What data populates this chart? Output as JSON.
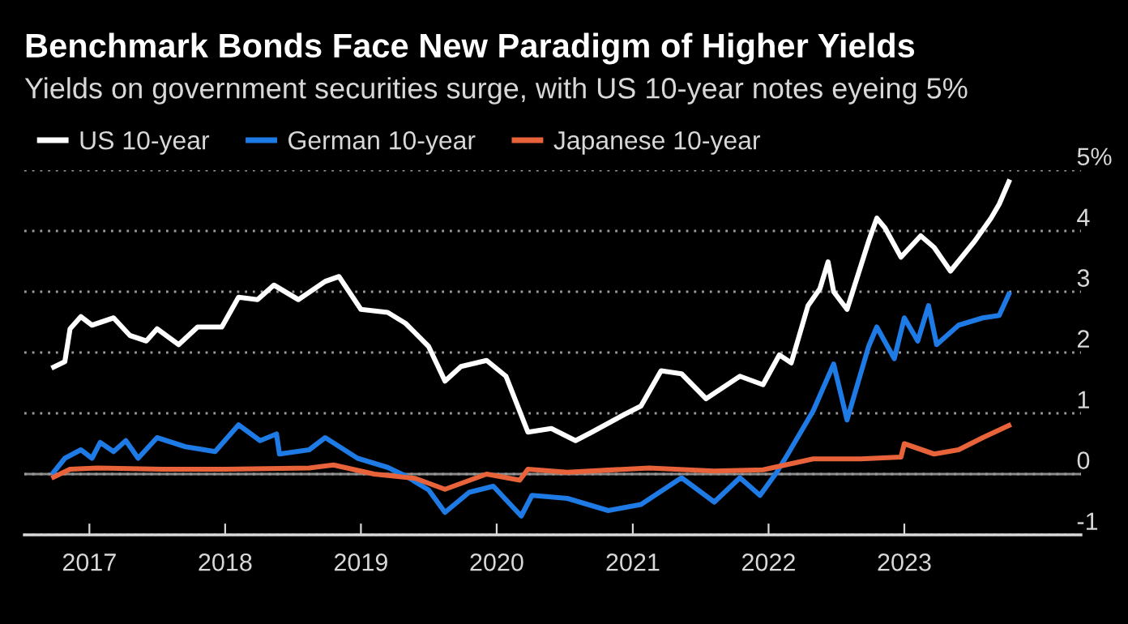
{
  "chart_data": {
    "type": "line",
    "title": "Benchmark Bonds Face New Paradigm of Higher Yields",
    "subtitle": "Yields on government securities surge, with US 10-year notes eyeing 5%",
    "series": [
      {
        "name": "US 10-year",
        "color": "#ffffff",
        "x": [
          "2016-09-27",
          "2016-10-27",
          "2016-11-10",
          "2016-12-09",
          "2017-01-08",
          "2017-03-07",
          "2017-04-20",
          "2017-06-03",
          "2017-07-02",
          "2017-08-29",
          "2017-10-19",
          "2017-12-23",
          "2018-02-06",
          "2018-03-29",
          "2018-05-12",
          "2018-07-17",
          "2018-09-27",
          "2018-11-03",
          "2019-01-01",
          "2019-03-14",
          "2019-05-01",
          "2019-07-02",
          "2019-08-15",
          "2019-09-27",
          "2019-12-05",
          "2020-01-26",
          "2020-03-25",
          "2020-05-27",
          "2020-07-31",
          "2020-09-13",
          "2020-12-09",
          "2021-01-23",
          "2021-03-18",
          "2021-05-12",
          "2021-07-17",
          "2021-10-16",
          "2021-12-17",
          "2022-01-30",
          "2022-03-03",
          "2022-04-17",
          "2022-05-19",
          "2022-06-10",
          "2022-06-25",
          "2022-07-31",
          "2022-09-27",
          "2022-10-19",
          "2022-11-10",
          "2022-12-23",
          "2023-02-14",
          "2023-03-22",
          "2023-05-05",
          "2023-07-09",
          "2023-08-22",
          "2023-09-13",
          "2023-10-09"
        ],
        "values": [
          1.76,
          1.85,
          2.39,
          2.59,
          2.45,
          2.57,
          2.28,
          2.19,
          2.39,
          2.13,
          2.42,
          2.42,
          2.91,
          2.87,
          3.11,
          2.87,
          3.17,
          3.25,
          2.71,
          2.66,
          2.48,
          2.1,
          1.53,
          1.77,
          1.87,
          1.61,
          0.69,
          0.75,
          0.55,
          0.69,
          0.98,
          1.12,
          1.7,
          1.65,
          1.24,
          1.61,
          1.47,
          1.96,
          1.83,
          2.77,
          3.05,
          3.49,
          3.0,
          2.71,
          3.83,
          4.21,
          4.05,
          3.57,
          3.92,
          3.73,
          3.34,
          3.83,
          4.21,
          4.44,
          4.81
        ]
      },
      {
        "name": "German 10-year",
        "color": "#1e7be6",
        "x": [
          "2016-09-27",
          "2016-10-27",
          "2016-12-09",
          "2017-01-08",
          "2017-01-30",
          "2017-03-07",
          "2017-04-09",
          "2017-05-12",
          "2017-07-02",
          "2017-09-16",
          "2017-12-05",
          "2018-02-06",
          "2018-04-05",
          "2018-05-19",
          "2018-05-27",
          "2018-08-15",
          "2018-09-27",
          "2018-12-23",
          "2019-03-14",
          "2019-05-01",
          "2019-07-02",
          "2019-08-15",
          "2019-10-19",
          "2019-12-23",
          "2020-03-07",
          "2020-04-05",
          "2020-07-09",
          "2020-10-27",
          "2021-01-23",
          "2021-05-12",
          "2021-08-08",
          "2021-10-16",
          "2021-12-09",
          "2022-01-23",
          "2022-02-21",
          "2022-05-01",
          "2022-06-25",
          "2022-07-31",
          "2022-09-27",
          "2022-10-19",
          "2022-12-05",
          "2023-01-01",
          "2023-02-06",
          "2023-03-07",
          "2023-03-29",
          "2023-05-27",
          "2023-07-31",
          "2023-09-13",
          "2023-10-09"
        ],
        "values": [
          0.03,
          0.26,
          0.4,
          0.26,
          0.52,
          0.37,
          0.55,
          0.26,
          0.6,
          0.45,
          0.37,
          0.81,
          0.55,
          0.66,
          0.33,
          0.4,
          0.6,
          0.26,
          0.11,
          -0.03,
          -0.26,
          -0.63,
          -0.3,
          -0.2,
          -0.69,
          -0.35,
          -0.4,
          -0.6,
          -0.5,
          -0.06,
          -0.46,
          -0.06,
          -0.35,
          0.03,
          0.32,
          1.04,
          1.81,
          0.89,
          2.1,
          2.42,
          1.9,
          2.57,
          2.19,
          2.77,
          2.13,
          2.45,
          2.57,
          2.61,
          2.96
        ]
      },
      {
        "name": "Japanese 10-year",
        "color": "#e8633a",
        "x": [
          "2016-09-27",
          "2016-11-10",
          "2017-01-23",
          "2017-07-16",
          "2018-01-01",
          "2018-08-15",
          "2018-10-19",
          "2019-02-06",
          "2019-05-27",
          "2019-08-15",
          "2019-12-05",
          "2020-03-03",
          "2020-03-25",
          "2020-07-09",
          "2021-02-14",
          "2021-08-08",
          "2021-12-17",
          "2022-05-01",
          "2022-09-06",
          "2022-12-23",
          "2023-01-01",
          "2023-03-22",
          "2023-05-27",
          "2023-07-31",
          "2023-10-09"
        ],
        "values": [
          -0.05,
          0.08,
          0.1,
          0.08,
          0.08,
          0.1,
          0.15,
          0.0,
          -0.07,
          -0.25,
          0.0,
          -0.1,
          0.08,
          0.03,
          0.1,
          0.05,
          0.07,
          0.25,
          0.25,
          0.28,
          0.5,
          0.33,
          0.4,
          0.6,
          0.8
        ]
      }
    ],
    "xlim": [
      "2016-07-10",
      "2024-04-20"
    ],
    "xticks": [
      {
        "value": "2017-01-01",
        "label": "2017"
      },
      {
        "value": "2018-01-01",
        "label": "2018"
      },
      {
        "value": "2019-01-01",
        "label": "2019"
      },
      {
        "value": "2020-01-01",
        "label": "2020"
      },
      {
        "value": "2021-01-01",
        "label": "2021"
      },
      {
        "value": "2022-01-01",
        "label": "2022"
      },
      {
        "value": "2023-01-01",
        "label": "2023"
      }
    ],
    "ylim": [
      -1,
      5
    ],
    "yticks": [
      -1,
      0,
      1,
      2,
      3,
      4,
      {
        "value": 5,
        "label": "5%"
      }
    ],
    "ref_lines": [
      {
        "axis": "y",
        "value": 0,
        "color": "#8a8a8a"
      }
    ],
    "grid": "y",
    "legend": "top left",
    "line_style": "solid",
    "marker": "none"
  }
}
